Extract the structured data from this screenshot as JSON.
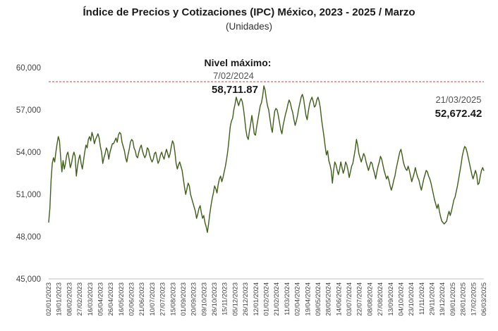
{
  "chart_data": {
    "type": "line",
    "title": "Índice de Precios y Cotizaciones (IPC) México, 2023 - 2025 / Marzo",
    "subtitle": "(Unidades)",
    "xlabel": "",
    "ylabel": "",
    "ylim": [
      45000,
      60000
    ],
    "yticks": [
      "60,000",
      "57,000",
      "54,000",
      "51,000",
      "48,000",
      "45,000"
    ],
    "ytick_values": [
      60000,
      57000,
      54000,
      51000,
      48000,
      45000
    ],
    "grid": false,
    "legend": "none",
    "line_color": "#3f5f1a",
    "reference_color": "#e03a3a",
    "xticks": [
      "02/01/2023",
      "19/01/2023",
      "08/02/2023",
      "27/02/2023",
      "16/03/2023",
      "05/04/2023",
      "26/04/2023",
      "16/05/2023",
      "02/06/2023",
      "21/06/2023",
      "10/07/2023",
      "27/07/2023",
      "15/08/2023",
      "01/09/2023",
      "20/09/2023",
      "09/10/2023",
      "26/10/2023",
      "15/11/2023",
      "05/12/2023",
      "26/12/2023",
      "12/01/2024",
      "01/02/2024",
      "21/02/2024",
      "11/03/2024",
      "02/04/2024",
      "19/04/2024",
      "09/05/2024",
      "28/05/2024",
      "14/06/2024",
      "03/07/2024",
      "22/07/2024",
      "08/08/2024",
      "27/08/2024",
      "13/09/2024",
      "04/10/2024",
      "23/10/2024",
      "11/11/2024",
      "29/11/2024",
      "19/12/2024",
      "09/01/2025",
      "28/01/2025",
      "17/02/2025",
      "06/03/2025"
    ],
    "reference_line": {
      "value": 59000
    },
    "annotations": {
      "max_label": "Nivel máximo:",
      "max_date": "7/02/2024",
      "max_value": "58,711.87",
      "last_date": "21/03/2025",
      "last_value": "52,672.42"
    },
    "series": [
      {
        "values": [
          49000,
          50000,
          52000,
          53200,
          53600,
          53300,
          54000,
          54600,
          55100,
          54800,
          53600,
          52600,
          53400,
          52800,
          53200,
          53800,
          54000,
          53500,
          52900,
          53200,
          53700,
          54000,
          53700,
          52300,
          53000,
          53500,
          53800,
          53200,
          52800,
          53400,
          54000,
          54500,
          54300,
          54900,
          55100,
          54800,
          55400,
          55100,
          54600,
          54900,
          55100,
          55300,
          55000,
          54400,
          54000,
          53200,
          53600,
          53900,
          54300,
          54100,
          53500,
          54000,
          54300,
          54600,
          54600,
          54800,
          55000,
          54700,
          55200,
          55400,
          55300,
          54700,
          54400,
          54100,
          53600,
          53300,
          53800,
          54200,
          54700,
          54900,
          54800,
          54300,
          54100,
          53700,
          53600,
          54000,
          54300,
          54500,
          54100,
          53800,
          53600,
          53800,
          54300,
          54200,
          53800,
          53500,
          53300,
          53500,
          53900,
          54000,
          53600,
          53200,
          53400,
          53800,
          54000,
          53700,
          53500,
          53900,
          54200,
          53900,
          53600,
          53900,
          54400,
          54800,
          54600,
          54000,
          53200,
          52800,
          53100,
          53300,
          53000,
          52700,
          52100,
          51500,
          51000,
          51400,
          51800,
          51600,
          51000,
          50700,
          50400,
          50100,
          49800,
          49300,
          49600,
          50000,
          50200,
          49700,
          49300,
          49500,
          49000,
          48700,
          48300,
          48900,
          49600,
          50200,
          50700,
          51100,
          51600,
          51400,
          51100,
          51700,
          52100,
          52300,
          51900,
          52200,
          52600,
          53000,
          53500,
          54100,
          54900,
          55800,
          56200,
          56400,
          57000,
          57400,
          57900,
          57600,
          57300,
          57600,
          57800,
          57600,
          57100,
          56400,
          55600,
          55100,
          54900,
          55500,
          56000,
          56600,
          56000,
          55300,
          55200,
          55800,
          56300,
          56800,
          57300,
          57500,
          58000,
          58700,
          58400,
          57800,
          57300,
          57000,
          56400,
          55800,
          55400,
          56200,
          56900,
          57100,
          57000,
          56600,
          56100,
          55600,
          55300,
          55900,
          56300,
          56700,
          57000,
          57400,
          57700,
          57500,
          57100,
          56800,
          56300,
          55900,
          56200,
          56600,
          57100,
          57500,
          57900,
          58100,
          57800,
          57200,
          56600,
          56300,
          56900,
          57400,
          57700,
          57900,
          57600,
          57200,
          57300,
          57700,
          57900,
          57600,
          57100,
          56300,
          55700,
          55100,
          54400,
          53800,
          54100,
          53400,
          53100,
          52700,
          51800,
          52700,
          53300,
          53100,
          52700,
          52400,
          52800,
          53300,
          52900,
          52500,
          52800,
          53300,
          53100,
          52700,
          52200,
          52600,
          53000,
          53200,
          53700,
          54200,
          54900,
          54500,
          53900,
          53600,
          53300,
          53600,
          53900,
          53700,
          53300,
          53000,
          52700,
          53000,
          53300,
          53200,
          52800,
          52500,
          52100,
          52600,
          53000,
          53300,
          53700,
          53500,
          53100,
          52700,
          52400,
          52100,
          52300,
          52000,
          51600,
          51300,
          51600,
          52000,
          52300,
          52800,
          53200,
          53600,
          54000,
          54200,
          53800,
          53300,
          53000,
          52800,
          52700,
          53000,
          52700,
          52300,
          51900,
          52200,
          52500,
          52900,
          52500,
          52200,
          52000,
          51600,
          51300,
          51700,
          52100,
          52400,
          52700,
          52600,
          52300,
          52100,
          51800,
          51400,
          51000,
          50600,
          50300,
          50000,
          50300,
          49800,
          49400,
          49100,
          49000,
          48900,
          49000,
          49100,
          49500,
          49800,
          49500,
          49800,
          50200,
          50600,
          50800,
          51200,
          51600,
          52100,
          52600,
          53100,
          53700,
          54100,
          54400,
          54300,
          54000,
          53600,
          53200,
          52800,
          52400,
          52100,
          52400,
          52700,
          52400,
          51700,
          51800,
          52300,
          52700,
          52900,
          52672
        ]
      }
    ]
  }
}
